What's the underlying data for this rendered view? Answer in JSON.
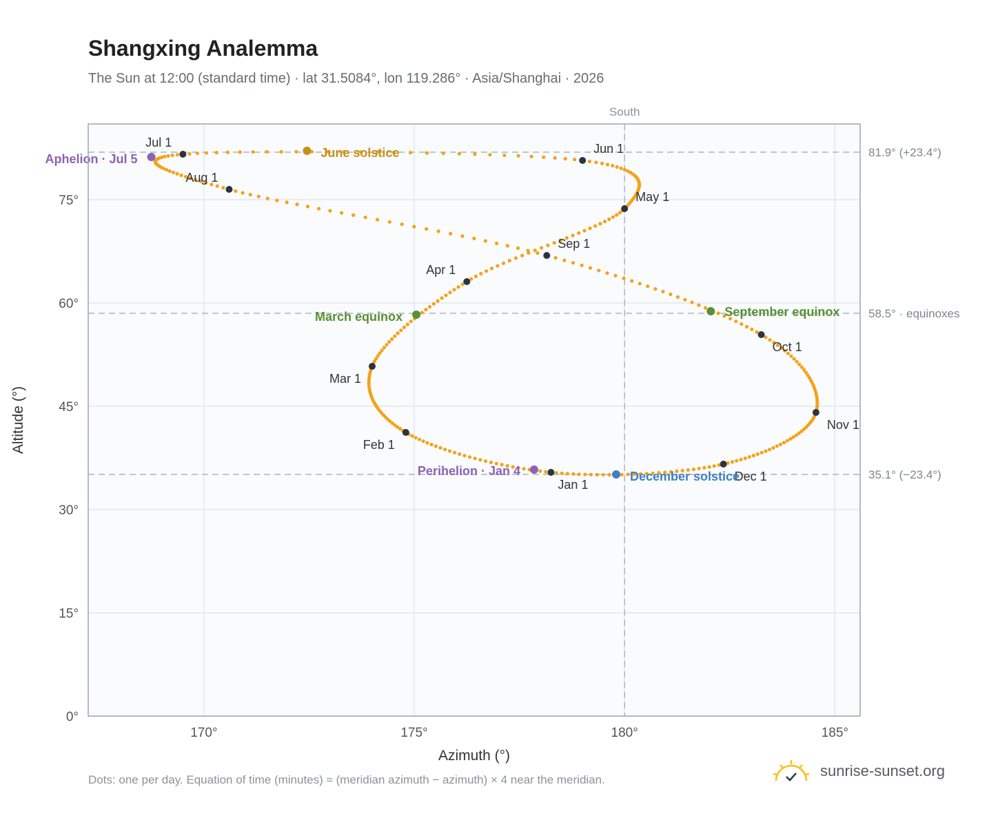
{
  "chart_data": {
    "type": "scatter",
    "title": "Shangxing Analemma",
    "subtitle": "The Sun at 12:00 (standard time) · lat 31.5084°, lon 119.286° · Asia/Shanghai · 2026",
    "xlabel": "Azimuth (°)",
    "ylabel": "Altitude (°)",
    "xlim": [
      167.25,
      185.6
    ],
    "ylim": [
      0,
      86
    ],
    "x_ticks": [
      170,
      175,
      180,
      185
    ],
    "x_tick_labels": [
      "170°",
      "175°",
      "180°",
      "185°"
    ],
    "y_ticks": [
      0,
      15,
      30,
      45,
      60,
      75
    ],
    "y_tick_labels": [
      "0°",
      "15°",
      "30°",
      "45°",
      "60°",
      "75°"
    ],
    "grid": true,
    "meridian": {
      "azimuth": 180,
      "label": "South"
    },
    "reference_lines": [
      {
        "altitude": 81.9,
        "label": "81.9° (+23.4°)"
      },
      {
        "altitude": 58.5,
        "label": "58.5° · equinoxes"
      },
      {
        "altitude": 35.1,
        "label": "35.1° (−23.4°)"
      }
    ],
    "path_color": "#f2a31b",
    "month_points": [
      {
        "label": "Jan 1",
        "az": 178.25,
        "alt": 35.4
      },
      {
        "label": "Feb 1",
        "az": 174.8,
        "alt": 41.2
      },
      {
        "label": "Mar 1",
        "az": 174.0,
        "alt": 50.8
      },
      {
        "label": "Apr 1",
        "az": 176.25,
        "alt": 63.1
      },
      {
        "label": "May 1",
        "az": 180.0,
        "alt": 73.7
      },
      {
        "label": "Jun 1",
        "az": 179.0,
        "alt": 80.7
      },
      {
        "label": "Jul 1",
        "az": 169.5,
        "alt": 81.6
      },
      {
        "label": "Aug 1",
        "az": 170.6,
        "alt": 76.5
      },
      {
        "label": "Sep 1",
        "az": 178.15,
        "alt": 66.9
      },
      {
        "label": "Oct 1",
        "az": 183.25,
        "alt": 55.4
      },
      {
        "label": "Nov 1",
        "az": 184.55,
        "alt": 44.1
      },
      {
        "label": "Dec 1",
        "az": 182.35,
        "alt": 36.6
      }
    ],
    "events": [
      {
        "label": "June solstice",
        "az": 172.45,
        "alt": 82.1,
        "color": "#c8901a"
      },
      {
        "label": "March equinox",
        "az": 175.05,
        "alt": 58.3,
        "color": "#5a8f35"
      },
      {
        "label": "September equinox",
        "az": 182.05,
        "alt": 58.8,
        "color": "#5a8f35"
      },
      {
        "label": "December solstice",
        "az": 179.8,
        "alt": 35.1,
        "color": "#3f7fc4"
      },
      {
        "label": "Aphelion · Jul 5",
        "az": 168.75,
        "alt": 81.2,
        "color": "#8c62b5"
      },
      {
        "label": "Perihelion · Jan 4",
        "az": 177.85,
        "alt": 35.8,
        "color": "#8c62b5"
      }
    ]
  },
  "footnote": "Dots: one per day. Equation of time (minutes) ≈ (meridian azimuth − azimuth) × 4 near the meridian.",
  "brand": {
    "name": "sunrise-sunset.org",
    "icon": "sun-icon"
  }
}
